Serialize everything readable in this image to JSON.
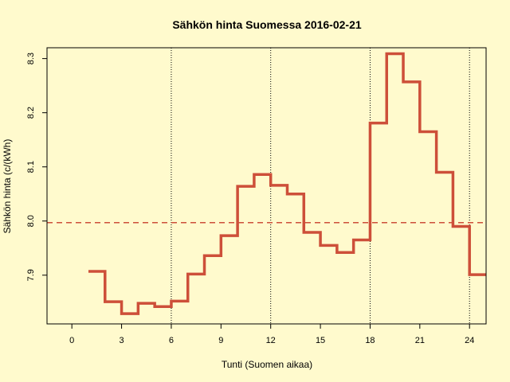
{
  "chart_data": {
    "type": "line",
    "style": "step",
    "title": "Sähkön hinta Suomessa 2016-02-21",
    "xlabel": "Tunti (Suomen aikaa)",
    "ylabel": "Sähkön hinta (c/(kWh)",
    "xlim": [
      -1.5,
      25
    ],
    "ylim": [
      7.81,
      8.32
    ],
    "xticks": [
      0,
      3,
      6,
      9,
      12,
      15,
      18,
      21,
      24
    ],
    "yticks": [
      7.9,
      8.0,
      8.1,
      8.2,
      8.3
    ],
    "ytick_labels": [
      "7.9",
      "8.0",
      "8.1",
      "8.2",
      "8.3"
    ],
    "vlines": [
      6,
      12,
      18,
      24
    ],
    "mean_line": 7.997,
    "series": [
      {
        "x": [
          1,
          2,
          3,
          4,
          5,
          6,
          7,
          8,
          9,
          10,
          11,
          12,
          13,
          14,
          15,
          16,
          17,
          18,
          19,
          20,
          21,
          22,
          23,
          24
        ],
        "values": [
          7.907,
          7.851,
          7.829,
          7.848,
          7.842,
          7.852,
          7.902,
          7.936,
          7.973,
          8.064,
          8.086,
          8.066,
          8.05,
          7.979,
          7.955,
          7.942,
          7.965,
          8.181,
          8.309,
          8.257,
          8.165,
          8.09,
          7.99,
          7.901
        ]
      }
    ],
    "colors": {
      "background": "#fffacd",
      "line": "#cd4f39",
      "mean": "#cd4f39",
      "vlines": "#000000"
    }
  }
}
